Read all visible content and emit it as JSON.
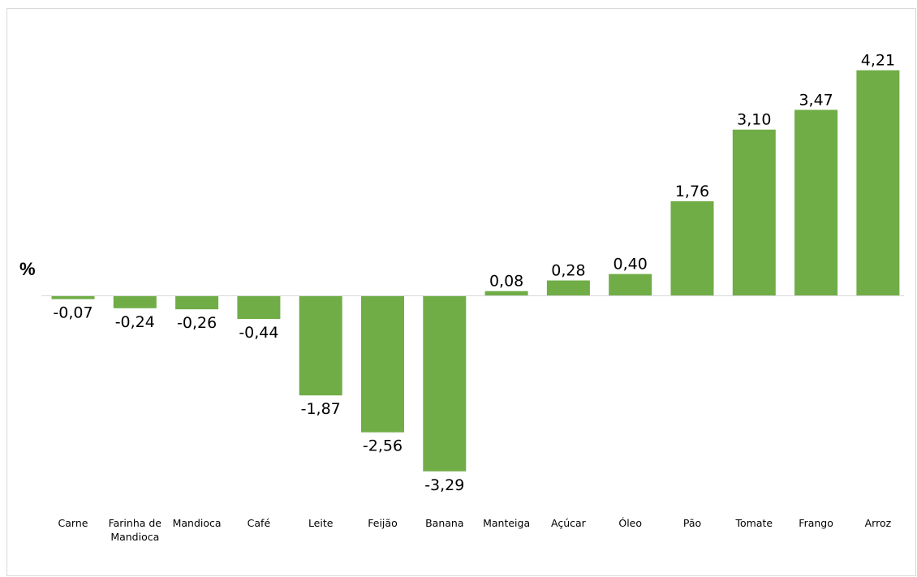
{
  "chart_data": {
    "type": "bar",
    "unit_label": "%",
    "categories": [
      "Carne",
      "Farinha de Mandioca",
      "Mandioca",
      "Café",
      "Leite",
      "Feijão",
      "Banana",
      "Manteiga",
      "Açúcar",
      "Óleo",
      "Pão",
      "Tomate",
      "Frango",
      "Arroz"
    ],
    "values": [
      -0.07,
      -0.24,
      -0.26,
      -0.44,
      -1.87,
      -2.56,
      -3.29,
      0.08,
      0.28,
      0.4,
      1.76,
      3.1,
      3.47,
      4.21
    ],
    "data_labels": [
      "-0,07",
      "-0,24",
      "-0,26",
      "-0,44",
      "-1,87",
      "-2,56",
      "-3,29",
      "0,08",
      "0,28",
      "0,40",
      "1,76",
      "3,10",
      "3,47",
      "4,21"
    ],
    "bar_color": "#70AD47",
    "axis_color": "#d9d9d9",
    "grid": false,
    "legend": "none"
  }
}
